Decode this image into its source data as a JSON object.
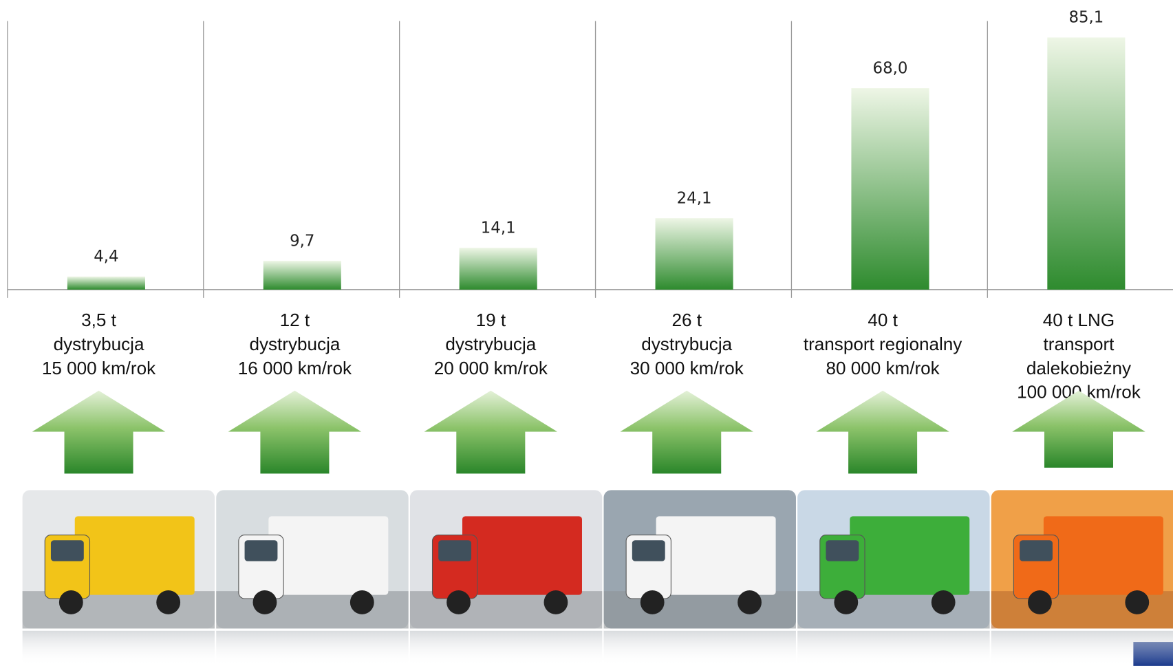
{
  "chart_data": {
    "type": "bar",
    "categories": [
      [
        "3,5 t",
        "dystrybucja",
        "15 000 km/rok"
      ],
      [
        "12 t",
        "dystrybucja",
        "16 000 km/rok"
      ],
      [
        "19 t",
        "dystrybucja",
        "20 000 km/rok"
      ],
      [
        "26 t",
        "dystrybucja",
        "30 000 km/rok"
      ],
      [
        "40 t",
        "transport regionalny",
        "80 000 km/rok"
      ],
      [
        "40 t LNG",
        "transport",
        "dalekobieżny",
        "100 000 km/rok"
      ]
    ],
    "values": [
      4.4,
      9.7,
      14.1,
      24.1,
      68.0,
      85.1
    ],
    "value_labels": [
      "4,4",
      "9,7",
      "14,1",
      "24,1",
      "68,0",
      "85,1"
    ],
    "color": "#2e8b2e"
  }
}
